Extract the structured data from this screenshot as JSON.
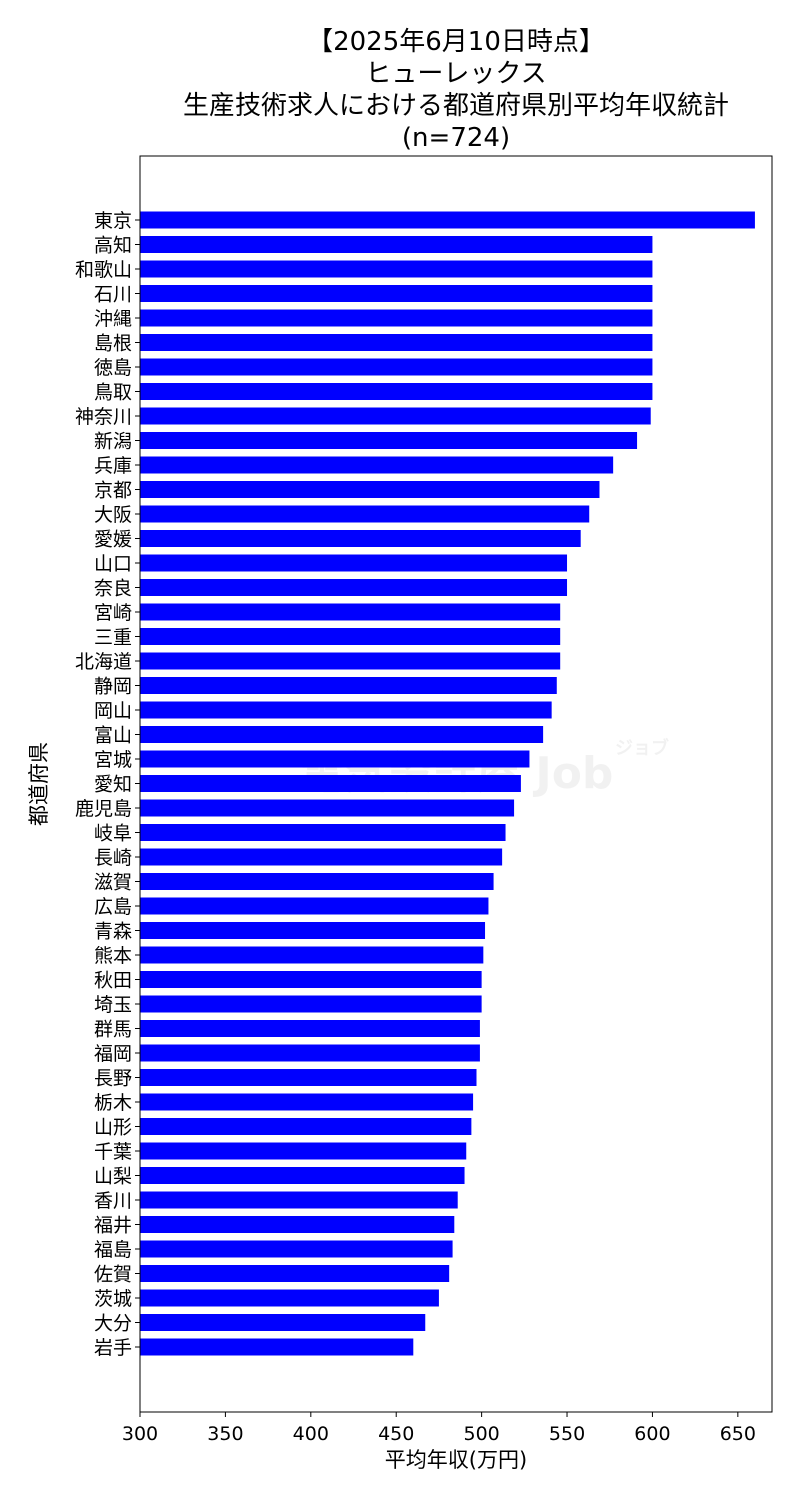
{
  "chart_data": {
    "type": "bar",
    "orientation": "horizontal",
    "title": [
      "【2025年6月10日時点】",
      "ヒューレックス",
      "生産技術求人における都道府県別平均年収統計",
      "(n=724)"
    ],
    "xlabel": "平均年収(万円)",
    "ylabel": "都道府県",
    "xlim": [
      300,
      670
    ],
    "xticks": [
      300,
      350,
      400,
      450,
      500,
      550,
      600,
      650
    ],
    "grid": false,
    "bar_color": "#0000ff",
    "categories": [
      "東京",
      "高知",
      "和歌山",
      "石川",
      "沖縄",
      "島根",
      "徳島",
      "鳥取",
      "神奈川",
      "新潟",
      "兵庫",
      "京都",
      "大阪",
      "愛媛",
      "山口",
      "奈良",
      "宮崎",
      "三重",
      "北海道",
      "静岡",
      "岡山",
      "富山",
      "宮城",
      "愛知",
      "鹿児島",
      "岐阜",
      "長崎",
      "滋賀",
      "広島",
      "青森",
      "熊本",
      "秋田",
      "埼玉",
      "群馬",
      "福岡",
      "長野",
      "栃木",
      "山形",
      "千葉",
      "山梨",
      "香川",
      "福井",
      "福島",
      "佐賀",
      "茨城",
      "大分",
      "岩手"
    ],
    "values": [
      660,
      600,
      600,
      600,
      600,
      600,
      600,
      600,
      599,
      591,
      577,
      569,
      563,
      558,
      550,
      550,
      546,
      546,
      546,
      544,
      541,
      536,
      528,
      523,
      519,
      514,
      512,
      507,
      504,
      502,
      501,
      500,
      500,
      499,
      499,
      497,
      495,
      494,
      491,
      490,
      486,
      484,
      483,
      481,
      475,
      467,
      460
    ]
  },
  "watermark": {
    "text": "電気設計屋 Job",
    "small": "ジョブ"
  }
}
